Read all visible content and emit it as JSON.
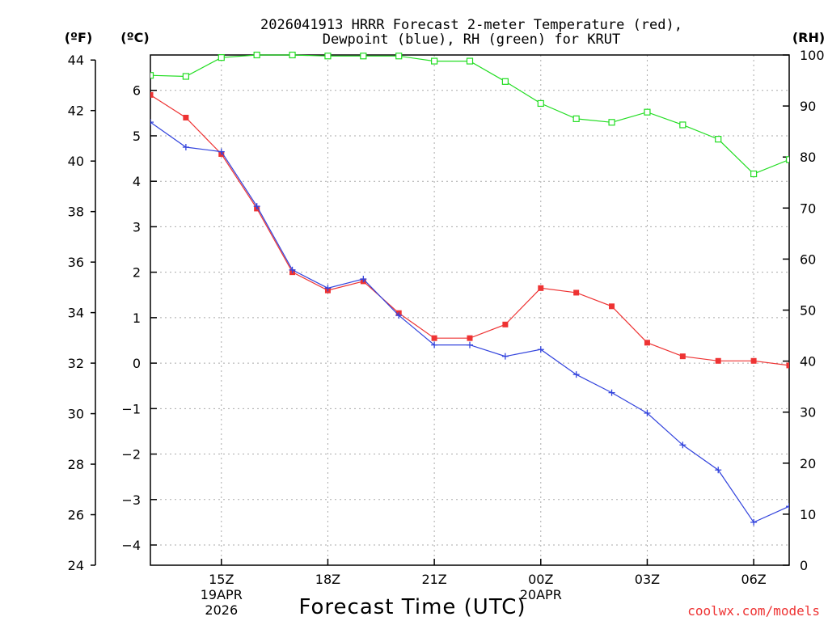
{
  "chart_data": {
    "type": "line",
    "title_line1": "2026041913 HRRR Forecast 2-meter Temperature (red),",
    "title_line2": "Dewpoint (blue), RH (green) for KRUT",
    "xlabel": "Forecast Time (UTC)",
    "credit": "coolwx.com/models",
    "x_hours": [
      13,
      14,
      15,
      16,
      17,
      18,
      19,
      20,
      21,
      22,
      23,
      24,
      25,
      26,
      27,
      28,
      29,
      30,
      31
    ],
    "xlim": [
      13,
      31
    ],
    "x_ticks": [
      {
        "hour": 15,
        "label": "15Z",
        "sub1": "19APR",
        "sub2": "2026"
      },
      {
        "hour": 18,
        "label": "18Z",
        "sub1": "",
        "sub2": ""
      },
      {
        "hour": 21,
        "label": "21Z",
        "sub1": "",
        "sub2": ""
      },
      {
        "hour": 24,
        "label": "00Z",
        "sub1": "20APR",
        "sub2": ""
      },
      {
        "hour": 27,
        "label": "03Z",
        "sub1": "",
        "sub2": ""
      },
      {
        "hour": 30,
        "label": "06Z",
        "sub1": "",
        "sub2": ""
      }
    ],
    "left_axis_f": {
      "unit": "(ºF)",
      "range": [
        24,
        44.2
      ],
      "ticks": [
        24,
        26,
        28,
        30,
        32,
        34,
        36,
        38,
        40,
        42,
        44
      ]
    },
    "left_axis_c": {
      "unit": "(ºC)",
      "range": [
        -4.444,
        6.778
      ],
      "ticks": [
        -4,
        -3,
        -2,
        -1,
        0,
        1,
        2,
        3,
        4,
        5,
        6
      ]
    },
    "right_axis_rh": {
      "unit": "(RH)",
      "range": [
        0,
        100
      ],
      "ticks": [
        0,
        10,
        20,
        30,
        40,
        50,
        60,
        70,
        80,
        90,
        100
      ]
    },
    "series": [
      {
        "name": "Temperature",
        "units": "C",
        "color": "#ee3333",
        "marker": "square-filled",
        "values": [
          5.9,
          5.4,
          4.6,
          3.4,
          2.0,
          1.6,
          1.8,
          1.1,
          0.55,
          0.55,
          0.85,
          1.65,
          1.55,
          1.25,
          0.45,
          0.15,
          0.05,
          0.05,
          -0.05
        ]
      },
      {
        "name": "Dewpoint",
        "units": "C",
        "color": "#3344dd",
        "marker": "plus",
        "values": [
          5.3,
          4.75,
          4.65,
          3.45,
          2.05,
          1.65,
          1.85,
          1.05,
          0.4,
          0.4,
          0.15,
          0.3,
          -0.25,
          -0.65,
          -1.1,
          -1.8,
          -2.35,
          -3.5,
          -3.15
        ]
      },
      {
        "name": "RH",
        "units": "%",
        "color": "#22dd22",
        "marker": "square-open",
        "values": [
          96,
          95.8,
          99.5,
          100,
          100,
          99.8,
          99.8,
          99.8,
          98.8,
          98.8,
          94.8,
          90.5,
          87.5,
          86.8,
          88.8,
          86.3,
          83.5,
          76.7,
          79.5
        ]
      }
    ]
  }
}
